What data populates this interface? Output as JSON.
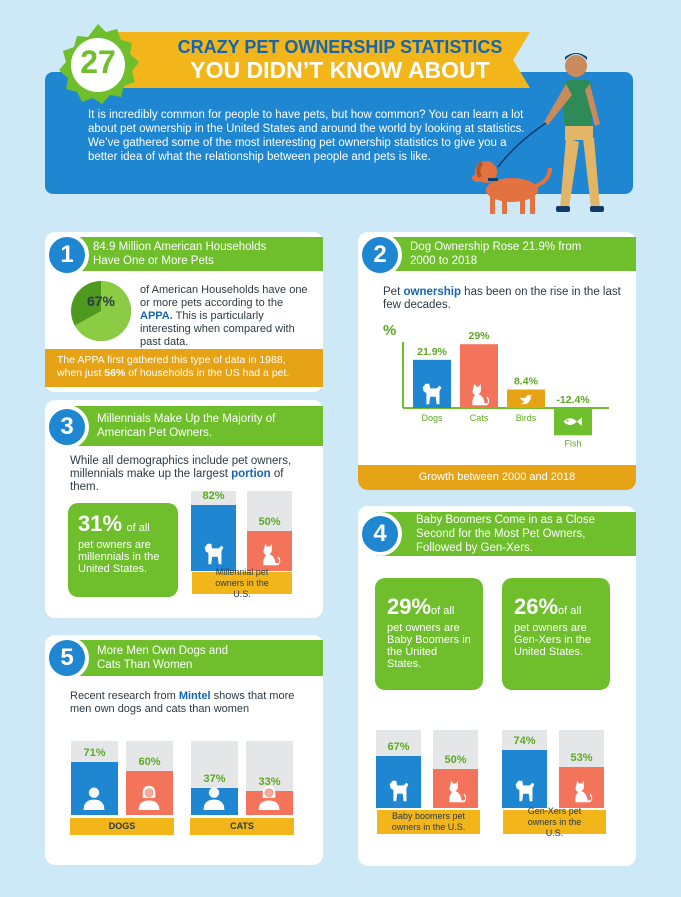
{
  "header": {
    "number": "27",
    "title_line1": "CRAZY PET OWNERSHIP STATISTICS",
    "title_line2": "YOU DIDN’T KNOW ABOUT",
    "intro": "It is incredibly common for people to have pets, but how common? You can learn a lot about pet ownership in the United States and around the world by looking at statistics. We’ve gathered some of the most interesting pet ownership statistics to give you a better idea of what the relationship between people and pets is like."
  },
  "s1": {
    "num": "1",
    "title": "84.9 Million American Households Have One or More Pets",
    "pie_label": "67%",
    "pie_value": 0.67,
    "body_pre": "of American Households have one or more pets according to the ",
    "body_bold": "APPA.",
    "body_post": " This is particularly interesting when compared with past data.",
    "footer_pre": "The APPA first gathered this type of data in 1988, when just ",
    "footer_bold": "56%",
    "footer_post": " of households in the US had a pet."
  },
  "s2": {
    "num": "2",
    "title": "Dog Ownership Rose 21.9% from 2000 to 2018",
    "intro_pre": "Pet ",
    "intro_bold": "ownership",
    "intro_post": " has been on the rise in the last few decades.",
    "y_unit": "%",
    "footer": "Growth between 2000 and 2018",
    "chart_data": {
      "type": "bar",
      "categories": [
        "Dogs",
        "Cats",
        "Birds",
        "Fish"
      ],
      "values": [
        21.9,
        29,
        8.4,
        -12.4
      ],
      "value_labels": [
        "21.9%",
        "29%",
        "8.4%",
        "-12.4%"
      ],
      "colors": [
        "#1f86d1",
        "#f3735b",
        "#e6a316",
        "#6fbe2c"
      ],
      "ylabel": "%",
      "title": ""
    }
  },
  "s3": {
    "num": "3",
    "title": "Millennials Make Up the Majority of American Pet Owners.",
    "intro_pre": "While all demographics include pet owners, millennials make up the largest ",
    "intro_bold": "portion",
    "intro_post": " of them.",
    "stat": "31%",
    "stat_text1": "of all",
    "stat_text2": "pet owners are millennials in the United States.",
    "bar1_label": "82%",
    "bar1_value": 82,
    "bar2_label": "50%",
    "bar2_value": 50,
    "tag": "Millennial pet owners in the U.S."
  },
  "s4": {
    "num": "4",
    "title": "Baby Boomers Come in as a Close Second for the Most Pet Owners, Followed by Gen-Xers.",
    "stat_a": "29%",
    "stat_a_text1": "of all",
    "stat_a_text2": "pet owners are Baby Boomers in the United States.",
    "stat_b": "26%",
    "stat_b_text1": "of all",
    "stat_b_text2": "pet owners are Gen-Xers in the United States.",
    "a_bar1_label": "67%",
    "a_bar1_value": 67,
    "a_bar2_label": "50%",
    "a_bar2_value": 50,
    "a_tag": "Baby boomers pet owners in the U.S.",
    "b_bar1_label": "74%",
    "b_bar1_value": 74,
    "b_bar2_label": "53%",
    "b_bar2_value": 53,
    "b_tag": "Gen-Xers pet owners in the U.S."
  },
  "s5": {
    "num": "5",
    "title": "More Men Own Dogs and Cats Than Women",
    "intro_pre": "Recent research from ",
    "intro_bold": "Mintel",
    "intro_post": " shows that more men own dogs and cats than women",
    "dogs_men_label": "71%",
    "dogs_men_value": 71,
    "dogs_women_label": "60%",
    "dogs_women_value": 60,
    "cats_men_label": "37%",
    "cats_men_value": 37,
    "cats_women_label": "33%",
    "cats_women_value": 33,
    "tag_dogs": "DOGS",
    "tag_cats": "CATS"
  }
}
